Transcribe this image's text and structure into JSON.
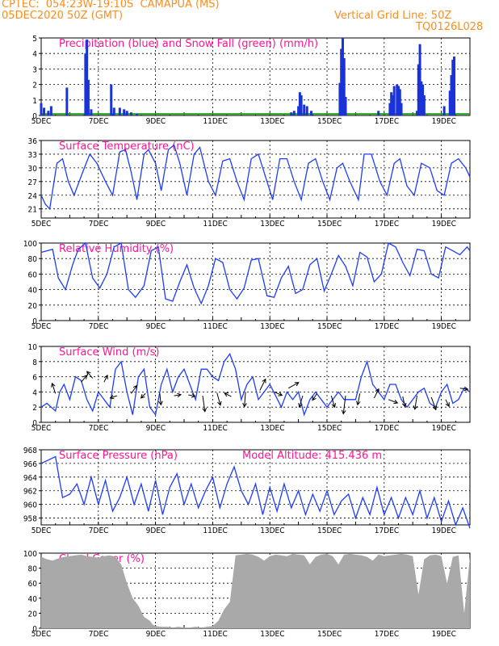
{
  "header": {
    "line1": "CPTEC:  054:23W-19:10S  CAMAPUA (MS)",
    "line2": "05DEC2020 50Z (GMT)",
    "grid_note": "Vertical Grid Line: 50Z",
    "code": "TQ0126L028"
  },
  "colors": {
    "line": "#1e3cff",
    "bar": "#1a33d9",
    "snow": "#22aa22",
    "cloud": "#a9a9a9",
    "title": "#ff1493",
    "header": "#ff8c1a"
  },
  "x_labels": [
    "5DEC",
    "7DEC",
    "9DEC",
    "11DEC",
    "13DEC",
    "15DEC",
    "17DEC",
    "19DEC"
  ],
  "x_range_days": [
    0,
    15
  ],
  "chart_data": [
    {
      "type": "bar",
      "title": "Precipitation (blue) and Snow Fall (green) (mm/h)",
      "ylim": [
        0,
        5
      ],
      "yticks": [
        0,
        1,
        2,
        3,
        4,
        5
      ],
      "bars": [
        [
          0.0,
          0.8
        ],
        [
          0.1,
          0.5
        ],
        [
          0.25,
          0.3
        ],
        [
          0.35,
          0.6
        ],
        [
          0.9,
          1.8
        ],
        [
          1.55,
          4.0
        ],
        [
          1.6,
          4.9
        ],
        [
          1.65,
          2.3
        ],
        [
          1.75,
          0.4
        ],
        [
          2.45,
          2.0
        ],
        [
          2.55,
          0.5
        ],
        [
          2.75,
          0.5
        ],
        [
          2.9,
          0.4
        ],
        [
          3.0,
          0.3
        ],
        [
          3.15,
          0.2
        ],
        [
          3.35,
          0.1
        ],
        [
          8.75,
          0.2
        ],
        [
          8.85,
          0.3
        ],
        [
          9.0,
          0.6
        ],
        [
          9.05,
          1.5
        ],
        [
          9.1,
          1.3
        ],
        [
          9.2,
          0.7
        ],
        [
          9.3,
          0.6
        ],
        [
          9.45,
          0.3
        ],
        [
          10.45,
          2.1
        ],
        [
          10.5,
          4.3
        ],
        [
          10.55,
          5.0
        ],
        [
          10.6,
          3.7
        ],
        [
          10.65,
          1.2
        ],
        [
          11.8,
          0.3
        ],
        [
          12.2,
          0.8
        ],
        [
          12.25,
          1.5
        ],
        [
          12.3,
          1.3
        ],
        [
          12.35,
          1.9
        ],
        [
          12.45,
          2.0
        ],
        [
          12.5,
          1.9
        ],
        [
          12.55,
          1.7
        ],
        [
          12.6,
          0.8
        ],
        [
          13.15,
          0.3
        ],
        [
          13.2,
          3.3
        ],
        [
          13.25,
          4.6
        ],
        [
          13.3,
          2.2
        ],
        [
          13.35,
          2.0
        ],
        [
          13.4,
          1.3
        ],
        [
          14.1,
          0.6
        ],
        [
          14.3,
          1.6
        ],
        [
          14.35,
          2.6
        ],
        [
          14.4,
          3.6
        ],
        [
          14.45,
          3.8
        ]
      ],
      "snow": [
        [
          0,
          15,
          0.1
        ]
      ]
    },
    {
      "type": "line",
      "title": "Surface Temperature (nC)",
      "ylim": [
        19,
        36
      ],
      "yticks": [
        21,
        24,
        27,
        30,
        33,
        36
      ],
      "x": [
        0,
        0.15,
        0.3,
        0.55,
        0.75,
        0.95,
        1.15,
        1.45,
        1.7,
        1.95,
        2.25,
        2.5,
        2.75,
        2.95,
        3.15,
        3.35,
        3.6,
        3.75,
        4.0,
        4.2,
        4.45,
        4.65,
        4.85,
        5.1,
        5.35,
        5.55,
        5.85,
        6.1,
        6.35,
        6.6,
        6.85,
        7.1,
        7.35,
        7.6,
        7.9,
        8.1,
        8.35,
        8.6,
        8.85,
        9.1,
        9.35,
        9.6,
        9.85,
        10.1,
        10.35,
        10.55,
        10.8,
        11.1,
        11.3,
        11.55,
        11.85,
        12.1,
        12.35,
        12.55,
        12.8,
        13.05,
        13.3,
        13.6,
        13.85,
        14.1,
        14.35,
        14.6,
        14.85,
        15.0
      ],
      "values": [
        24,
        22,
        21,
        31,
        32,
        27,
        24,
        29,
        33,
        31,
        27,
        24,
        33.5,
        34,
        29,
        23,
        33,
        34,
        31,
        25,
        34,
        35,
        31,
        24,
        33,
        34.5,
        27,
        24,
        31.5,
        32,
        27,
        23,
        32,
        33,
        27,
        23,
        32,
        32,
        27,
        23,
        31,
        32,
        27,
        23,
        30,
        31,
        27,
        23,
        33,
        33,
        27,
        24,
        31,
        32,
        26,
        24,
        31,
        30,
        25,
        24,
        31,
        32,
        30,
        28
      ]
    },
    {
      "type": "line",
      "title": "Relative Humidity (%)",
      "ylim": [
        0,
        100
      ],
      "yticks": [
        0,
        20,
        40,
        60,
        80,
        100
      ],
      "x": [
        0,
        0.2,
        0.4,
        0.6,
        0.85,
        1.1,
        1.3,
        1.55,
        1.8,
        2.05,
        2.3,
        2.55,
        2.8,
        3.05,
        3.3,
        3.6,
        3.85,
        4.1,
        4.35,
        4.6,
        4.85,
        5.1,
        5.35,
        5.6,
        5.85,
        6.1,
        6.35,
        6.6,
        6.85,
        7.1,
        7.35,
        7.6,
        7.9,
        8.15,
        8.4,
        8.65,
        8.9,
        9.15,
        9.4,
        9.65,
        9.9,
        10.15,
        10.4,
        10.65,
        10.9,
        11.15,
        11.4,
        11.65,
        11.9,
        12.15,
        12.4,
        12.65,
        12.9,
        13.15,
        13.4,
        13.65,
        13.9,
        14.15,
        14.4,
        14.65,
        14.9,
        15.0
      ],
      "values": [
        88,
        90,
        92,
        55,
        40,
        72,
        92,
        100,
        55,
        42,
        60,
        95,
        100,
        40,
        30,
        45,
        90,
        95,
        28,
        25,
        50,
        72,
        42,
        22,
        45,
        80,
        75,
        40,
        28,
        42,
        78,
        80,
        32,
        30,
        55,
        70,
        35,
        40,
        72,
        80,
        38,
        60,
        84,
        70,
        45,
        88,
        82,
        50,
        60,
        100,
        95,
        75,
        58,
        92,
        90,
        60,
        55,
        95,
        90,
        85,
        95,
        90
      ]
    },
    {
      "type": "line",
      "title": "Surface Wind (m/s)",
      "ylim": [
        0,
        10
      ],
      "yticks": [
        0,
        2,
        4,
        6,
        8,
        10
      ],
      "x": [
        0,
        0.2,
        0.35,
        0.5,
        0.65,
        0.8,
        1.0,
        1.2,
        1.4,
        1.6,
        1.8,
        2.0,
        2.2,
        2.4,
        2.6,
        2.8,
        3.0,
        3.2,
        3.4,
        3.6,
        3.8,
        4.0,
        4.2,
        4.4,
        4.6,
        4.8,
        5.0,
        5.2,
        5.4,
        5.6,
        5.8,
        6.0,
        6.2,
        6.4,
        6.6,
        6.8,
        7.0,
        7.2,
        7.4,
        7.6,
        7.8,
        8.0,
        8.2,
        8.4,
        8.6,
        8.8,
        9.0,
        9.2,
        9.4,
        9.6,
        9.8,
        10.0,
        10.2,
        10.4,
        10.6,
        10.8,
        11.0,
        11.2,
        11.4,
        11.6,
        11.8,
        12.0,
        12.2,
        12.4,
        12.6,
        12.8,
        13.0,
        13.2,
        13.4,
        13.6,
        13.8,
        14.0,
        14.2,
        14.4,
        14.6,
        14.8,
        15.0
      ],
      "values": [
        2,
        2.5,
        2,
        1.5,
        4,
        5,
        3,
        6,
        5.5,
        3,
        1.5,
        4,
        3,
        2,
        7,
        8,
        4,
        1,
        6,
        7,
        2,
        1,
        5,
        7,
        4,
        6,
        7,
        5,
        3,
        7,
        7,
        6,
        5.5,
        8,
        9,
        7,
        3,
        5,
        6,
        3,
        4,
        5,
        3.5,
        2,
        4,
        3,
        4,
        1,
        3,
        4,
        3,
        2,
        3,
        4,
        3,
        3,
        3,
        6,
        8,
        5,
        4,
        3,
        5,
        5,
        3,
        2,
        3,
        4,
        4.5,
        2.5,
        2,
        4,
        5,
        2.5,
        3,
        4.5,
        4
      ],
      "arrows": [
        [
          0.5,
          3.8,
          -0.3,
          0.9
        ],
        [
          1.4,
          5.3,
          0.5,
          0.6
        ],
        [
          1.8,
          5.8,
          -0.5,
          0.6
        ],
        [
          2.2,
          5.3,
          0.3,
          0.6
        ],
        [
          2.65,
          3.5,
          -0.6,
          -0.2
        ],
        [
          3.15,
          3.8,
          0.5,
          0.7
        ],
        [
          3.65,
          3.8,
          -0.4,
          -0.4
        ],
        [
          4.15,
          3.8,
          0.1,
          -1.0
        ],
        [
          4.65,
          3.5,
          0.6,
          0.1
        ],
        [
          5.15,
          3.6,
          0.6,
          -0.1
        ],
        [
          5.65,
          3.5,
          0.2,
          -1.4
        ],
        [
          6.15,
          3.9,
          0.3,
          -1.1
        ],
        [
          6.65,
          3.4,
          -0.6,
          0.3
        ],
        [
          7.15,
          4.0,
          -0.1,
          -1.3
        ],
        [
          7.65,
          4.2,
          0.5,
          1.0
        ],
        [
          8.15,
          4.0,
          0.7,
          -0.3
        ],
        [
          8.65,
          4.5,
          0.9,
          0.5
        ],
        [
          9.15,
          3.5,
          -0.3,
          -1.0
        ],
        [
          9.65,
          3.8,
          -0.4,
          -0.6
        ],
        [
          10.15,
          3.5,
          0.3,
          -1.0
        ],
        [
          10.65,
          3.5,
          -0.2,
          -1.6
        ],
        [
          11.15,
          3.8,
          -0.2,
          -1.0
        ],
        [
          11.65,
          3.2,
          0.4,
          0.8
        ],
        [
          12.15,
          3.0,
          0.8,
          -0.3
        ],
        [
          12.65,
          3.4,
          0.2,
          -0.9
        ],
        [
          13.15,
          3.5,
          -0.2,
          -1.2
        ],
        [
          13.65,
          3.3,
          0.4,
          -1.1
        ],
        [
          14.15,
          3.0,
          0.3,
          -0.6
        ],
        [
          14.65,
          4.5,
          0.7,
          -0.1
        ]
      ]
    },
    {
      "type": "line",
      "title": "Surface Pressure (hPa)",
      "annotation": "Model Altitude: 415.436  m",
      "ylim": [
        957,
        968
      ],
      "yticks": [
        958,
        960,
        962,
        964,
        966,
        968
      ],
      "x": [
        0,
        0.25,
        0.5,
        0.75,
        1.0,
        1.25,
        1.5,
        1.75,
        2.0,
        2.25,
        2.5,
        2.75,
        3.0,
        3.25,
        3.5,
        3.75,
        4.0,
        4.25,
        4.5,
        4.75,
        5.0,
        5.25,
        5.5,
        5.75,
        6.0,
        6.25,
        6.5,
        6.75,
        7.0,
        7.25,
        7.5,
        7.75,
        8.0,
        8.25,
        8.5,
        8.75,
        9.0,
        9.25,
        9.5,
        9.75,
        10.0,
        10.25,
        10.5,
        10.75,
        11.0,
        11.25,
        11.5,
        11.75,
        12.0,
        12.25,
        12.5,
        12.75,
        13.0,
        13.25,
        13.5,
        13.75,
        14.0,
        14.25,
        14.5,
        14.75,
        15.0
      ],
      "values": [
        966,
        966.5,
        967,
        961,
        961.5,
        963,
        960,
        964,
        960,
        963.5,
        959,
        961,
        964,
        960,
        963,
        959,
        963.5,
        958.5,
        962.5,
        964.5,
        960,
        963,
        959.5,
        962,
        964,
        959.5,
        963,
        965.5,
        962,
        960,
        963,
        958.5,
        962.5,
        959,
        963,
        959.5,
        962,
        958.5,
        961.5,
        959,
        962,
        958.5,
        960.5,
        961.5,
        958,
        961,
        958.5,
        962.5,
        958.5,
        961,
        958,
        961,
        958.5,
        962,
        958,
        961,
        957.5,
        960.5,
        957,
        959.5,
        956.5
      ]
    },
    {
      "type": "area",
      "title": "Cloud Cover (%)",
      "ylim": [
        0,
        100
      ],
      "yticks": [
        0,
        20,
        40,
        60,
        80,
        100
      ],
      "x": [
        0,
        0.2,
        0.4,
        0.6,
        0.8,
        1.0,
        1.2,
        1.4,
        1.6,
        1.8,
        2.0,
        2.2,
        2.4,
        2.6,
        2.8,
        3.0,
        3.2,
        3.4,
        3.6,
        3.8,
        3.9,
        4.0,
        4.2,
        4.4,
        4.6,
        4.8,
        5.0,
        5.2,
        5.4,
        5.6,
        5.8,
        6.0,
        6.2,
        6.4,
        6.6,
        6.8,
        7.0,
        7.2,
        7.4,
        7.6,
        7.8,
        8.0,
        8.2,
        8.4,
        8.6,
        8.8,
        9.0,
        9.2,
        9.4,
        9.6,
        9.8,
        10.0,
        10.2,
        10.4,
        10.6,
        10.8,
        11.0,
        11.2,
        11.4,
        11.6,
        11.8,
        12.0,
        12.2,
        12.4,
        12.6,
        12.8,
        13.0,
        13.2,
        13.4,
        13.6,
        13.8,
        14.0,
        14.2,
        14.4,
        14.6,
        14.8,
        15.0
      ],
      "values": [
        95,
        92,
        90,
        93,
        95,
        96,
        97,
        98,
        96,
        95,
        94,
        96,
        97,
        95,
        85,
        60,
        40,
        30,
        15,
        10,
        5,
        3,
        2,
        2,
        1,
        2,
        1,
        1,
        2,
        1,
        2,
        3,
        10,
        25,
        35,
        97,
        98,
        99,
        98,
        95,
        90,
        96,
        98,
        97,
        96,
        99,
        98,
        97,
        85,
        95,
        98,
        99,
        96,
        85,
        98,
        99,
        98,
        97,
        95,
        90,
        98,
        96,
        97,
        98,
        99,
        98,
        96,
        45,
        92,
        97,
        98,
        96,
        60,
        95,
        97,
        20,
        95
      ]
    }
  ]
}
